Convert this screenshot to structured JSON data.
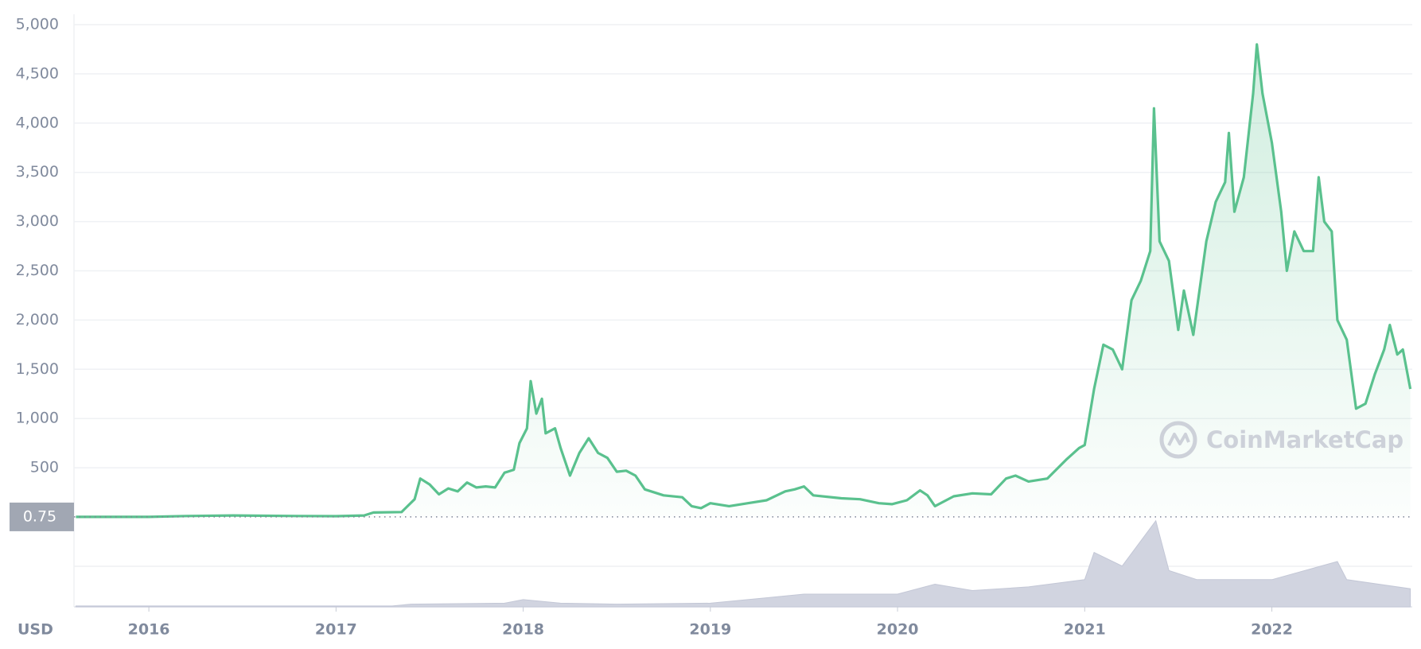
{
  "chart_data": {
    "type": "line",
    "x": [
      2015.61,
      2016.0,
      2016.2,
      2016.45,
      2016.8,
      2017.0,
      2017.15,
      2017.2,
      2017.35,
      2017.42,
      2017.45,
      2017.5,
      2017.55,
      2017.6,
      2017.65,
      2017.7,
      2017.75,
      2017.8,
      2017.85,
      2017.9,
      2017.95,
      2017.98,
      2018.02,
      2018.04,
      2018.07,
      2018.1,
      2018.12,
      2018.17,
      2018.2,
      2018.25,
      2018.3,
      2018.35,
      2018.4,
      2018.45,
      2018.5,
      2018.55,
      2018.6,
      2018.65,
      2018.75,
      2018.85,
      2018.9,
      2018.95,
      2019.0,
      2019.1,
      2019.2,
      2019.3,
      2019.4,
      2019.45,
      2019.5,
      2019.55,
      2019.7,
      2019.8,
      2019.9,
      2019.97,
      2020.05,
      2020.12,
      2020.16,
      2020.2,
      2020.3,
      2020.4,
      2020.5,
      2020.58,
      2020.63,
      2020.7,
      2020.8,
      2020.9,
      2020.97,
      2021.0,
      2021.05,
      2021.1,
      2021.15,
      2021.2,
      2021.25,
      2021.3,
      2021.35,
      2021.37,
      2021.4,
      2021.45,
      2021.5,
      2021.53,
      2021.58,
      2021.65,
      2021.7,
      2021.75,
      2021.77,
      2021.8,
      2021.85,
      2021.9,
      2021.92,
      2021.95,
      2022.0,
      2022.05,
      2022.08,
      2022.12,
      2022.17,
      2022.22,
      2022.25,
      2022.28,
      2022.32,
      2022.35,
      2022.4,
      2022.45,
      2022.5,
      2022.55,
      2022.6,
      2022.63,
      2022.67,
      2022.7,
      2022.74
    ],
    "values": [
      1,
      1,
      10,
      15,
      10,
      8,
      15,
      45,
      50,
      180,
      390,
      330,
      230,
      290,
      260,
      350,
      300,
      310,
      300,
      450,
      480,
      750,
      900,
      1380,
      1050,
      1200,
      850,
      900,
      700,
      420,
      650,
      800,
      650,
      600,
      460,
      470,
      420,
      280,
      220,
      200,
      110,
      90,
      140,
      110,
      140,
      170,
      260,
      280,
      310,
      220,
      190,
      180,
      140,
      130,
      170,
      270,
      220,
      110,
      210,
      240,
      230,
      390,
      420,
      360,
      390,
      580,
      700,
      730,
      1300,
      1750,
      1700,
      1500,
      2200,
      2400,
      2700,
      4150,
      2800,
      2600,
      1900,
      2300,
      1850,
      2800,
      3200,
      3400,
      3900,
      3100,
      3450,
      4300,
      4800,
      4300,
      3800,
      3100,
      2500,
      2900,
      2700,
      2700,
      3450,
      3000,
      2900,
      2000,
      1800,
      1100,
      1150,
      1450,
      1700,
      1950,
      1650,
      1700,
      1300
    ],
    "color": "#5ac18e",
    "xlim": [
      2015.6,
      2022.75
    ],
    "xticks": [
      2016,
      2017,
      2018,
      2019,
      2020,
      2021,
      2022
    ],
    "ylim": [
      0,
      5000
    ],
    "yticks": [
      500,
      {
        "value": 1000,
        "label": "1,000"
      },
      {
        "value": 1500,
        "label": "1,500"
      },
      {
        "value": 2000,
        "label": "2,000"
      },
      {
        "value": 2500,
        "label": "2,500"
      },
      {
        "value": 3000,
        "label": "3,000"
      },
      {
        "value": 3500,
        "label": "3,500"
      },
      {
        "value": 4000,
        "label": "4,000"
      },
      {
        "value": 4500,
        "label": "4,500"
      },
      {
        "value": 5000,
        "label": "5,000"
      }
    ],
    "grid": true,
    "baseline_label": 0.75,
    "y_axis_label": "USD",
    "watermark": "CoinMarketCap",
    "volume": {
      "axis": "y2",
      "color": "#d1d4e0",
      "x": [
        2015.61,
        2016.5,
        2017.3,
        2017.4,
        2017.9,
        2018.0,
        2018.2,
        2018.5,
        2019.0,
        2019.3,
        2019.5,
        2020.0,
        2020.2,
        2020.4,
        2020.7,
        2021.0,
        2021.05,
        2021.2,
        2021.38,
        2021.45,
        2021.6,
        2021.8,
        2022.0,
        2022.35,
        2022.4,
        2022.74
      ],
      "values": [
        1,
        1,
        1,
        3,
        4,
        8,
        4,
        3,
        4,
        10,
        14,
        14,
        25,
        18,
        22,
        30,
        60,
        45,
        95,
        40,
        30,
        30,
        30,
        50,
        30,
        20
      ]
    },
    "y2lim": [
      0,
      100
    ]
  }
}
